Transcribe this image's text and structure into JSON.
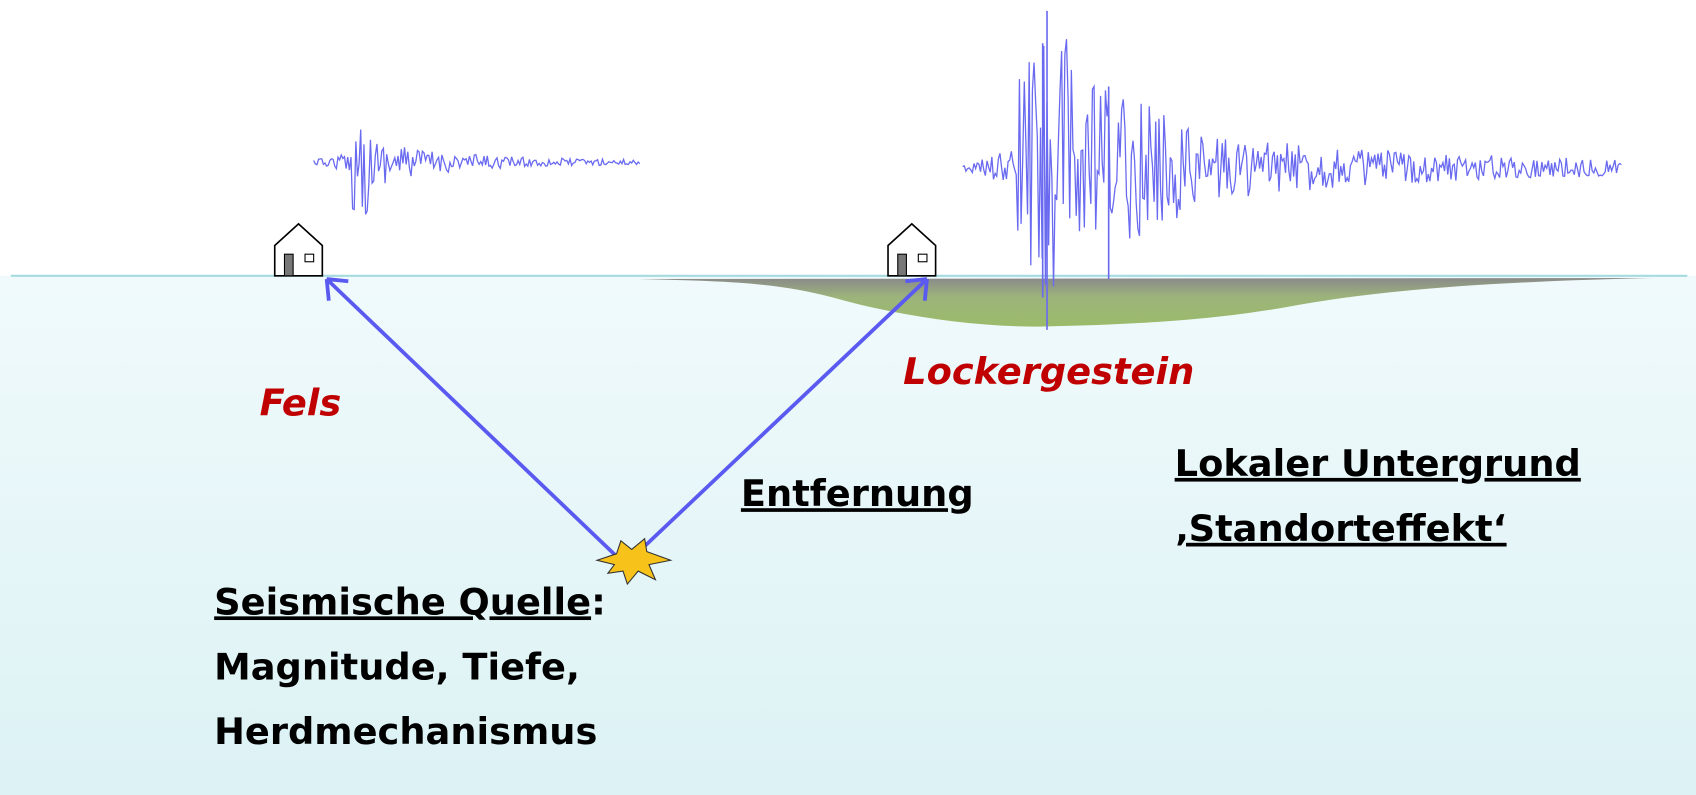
{
  "rock_label": "Fels",
  "soil_label": "Lockergestein",
  "distance_label": "Entfernung",
  "site": {
    "line1": "Lokaler Untergrund",
    "line2": "‚Standorteffekt‘"
  },
  "source": {
    "title": "Seismische Quelle",
    "colon": ":",
    "line2": "Magnitude, Tiefe,",
    "line3": "Herdmechanismus"
  }
}
